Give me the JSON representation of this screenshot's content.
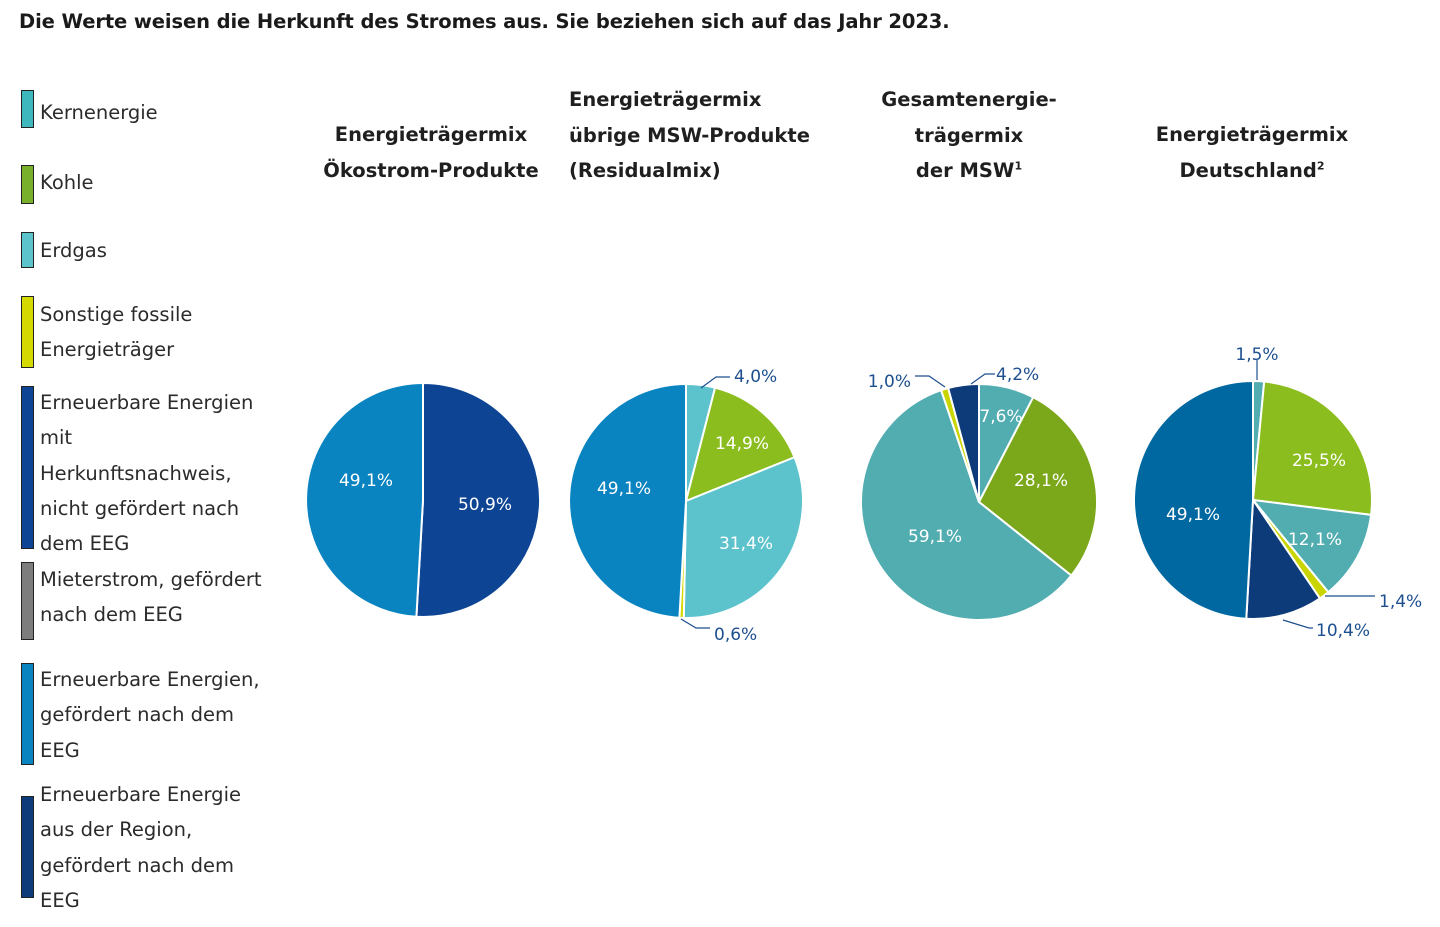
{
  "headline": "Die Werte weisen die Herkunft des Stromes aus. Sie beziehen sich auf das Jahr 2023.",
  "legend": [
    {
      "key": "kern",
      "lines": [
        "Kernenergie"
      ],
      "color": "#3fb8bd"
    },
    {
      "key": "kohle",
      "lines": [
        "Kohle"
      ],
      "color": "#79b02b"
    },
    {
      "key": "erdgas",
      "lines": [
        "Erdgas"
      ],
      "color": "#5cc2cc"
    },
    {
      "key": "sonstige",
      "lines": [
        "Sonstige fossile",
        "Energieträger"
      ],
      "color": "#d4d900"
    },
    {
      "key": "ee_hkn",
      "lines": [
        "Erneuerbare Energien",
        "mit",
        "Herkunftsnachweis,",
        "nicht gefördert nach",
        "dem EEG"
      ],
      "color": "#0d4494"
    },
    {
      "key": "mieter",
      "lines": [
        "Mieterstrom, gefördert",
        "nach dem EEG"
      ],
      "color": "#7d7d7d"
    },
    {
      "key": "ee_eeg",
      "lines": [
        "Erneuerbare Energien,",
        "gefördert nach dem",
        "EEG"
      ],
      "color": "#0a83c1"
    },
    {
      "key": "ee_region",
      "lines": [
        "Erneuerbare Energie",
        "aus der Region,",
        "gefördert nach dem",
        "EEG"
      ],
      "color": "#0d3a78"
    }
  ],
  "chart_data": [
    {
      "type": "pie",
      "title_lines": [
        "Energieträgermix",
        "Ökostrom-Produkte"
      ],
      "title_sup": "",
      "slices": [
        {
          "label": "Erneuerbare Energien mit Herkunftsnachweis, nicht gefördert nach dem EEG",
          "value": 50.9,
          "text": "50,9%",
          "color": "#0d4494"
        },
        {
          "label": "Erneuerbare Energien, gefördert nach dem EEG",
          "value": 49.1,
          "text": "49,1%",
          "color": "#0a83c1"
        }
      ]
    },
    {
      "type": "pie",
      "title_lines": [
        "Energieträgermix",
        "übrige MSW-Produkte",
        "(Residualmix)"
      ],
      "title_sup": "",
      "slices": [
        {
          "label": "Kernenergie",
          "value": 4.0,
          "text": "4,0%",
          "color": "#5cc2cc"
        },
        {
          "label": "Kohle",
          "value": 14.9,
          "text": "14,9%",
          "color": "#8cbd1e"
        },
        {
          "label": "Erdgas",
          "value": 31.4,
          "text": "31,4%",
          "color": "#5cc2cc"
        },
        {
          "label": "Sonstige fossile Energieträger",
          "value": 0.6,
          "text": "0,6%",
          "color": "#d4d900"
        },
        {
          "label": "Erneuerbare Energien, gefördert nach dem EEG",
          "value": 49.1,
          "text": "49,1%",
          "color": "#0a83c1"
        }
      ]
    },
    {
      "type": "pie",
      "title_lines": [
        "Gesamtenergie-",
        "trägermix",
        "der MSW"
      ],
      "title_sup": "1",
      "slices": [
        {
          "label": "Kernenergie",
          "value": 7.6,
          "text": "7,6%",
          "color": "#52adb1"
        },
        {
          "label": "Kohle",
          "value": 28.1,
          "text": "28,1%",
          "color": "#7ba71a"
        },
        {
          "label": "Erdgas",
          "value": 59.1,
          "text": "59,1%",
          "color": "#52adb1"
        },
        {
          "label": "Sonstige fossile Energieträger",
          "value": 1.0,
          "text": "1,0%",
          "color": "#c9d400"
        },
        {
          "label": "Erneuerbare Energie aus der Region, gefördert nach dem EEG",
          "value": 4.2,
          "text": "4,2%",
          "color": "#0d3a78"
        }
      ]
    },
    {
      "type": "pie",
      "title_lines": [
        "Energieträgermix",
        "Deutschland"
      ],
      "title_sup": "2",
      "slices": [
        {
          "label": "Kernenergie",
          "value": 1.5,
          "text": "1,5%",
          "color": "#52adb1"
        },
        {
          "label": "Kohle",
          "value": 25.5,
          "text": "25,5%",
          "color": "#8cbd1e"
        },
        {
          "label": "Erdgas",
          "value": 12.1,
          "text": "12,1%",
          "color": "#52adb1"
        },
        {
          "label": "Sonstige fossile Energieträger",
          "value": 1.4,
          "text": "1,4%",
          "color": "#c9d400"
        },
        {
          "label": "Erneuerbare Energien mit Herkunftsnachweis, nicht gefördert nach dem EEG",
          "value": 10.4,
          "text": "10,4%",
          "color": "#0d3a78"
        },
        {
          "label": "Erneuerbare Energien, gefördert nach dem EEG",
          "value": 49.1,
          "text": "49,1%",
          "color": "#0068a0"
        }
      ]
    }
  ]
}
